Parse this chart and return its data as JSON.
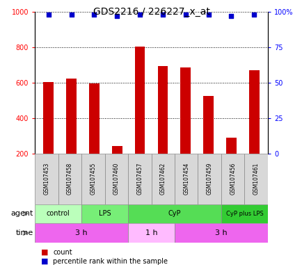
{
  "title": "GDS2216 / 226227_x_at",
  "samples": [
    "GSM107453",
    "GSM107458",
    "GSM107455",
    "GSM107460",
    "GSM107457",
    "GSM107462",
    "GSM107454",
    "GSM107459",
    "GSM107456",
    "GSM107461"
  ],
  "counts": [
    605,
    625,
    597,
    242,
    805,
    693,
    688,
    527,
    289,
    672
  ],
  "percentile_ranks": [
    98,
    98,
    98,
    97,
    98,
    98,
    98,
    98,
    97,
    98
  ],
  "bar_color": "#cc0000",
  "dot_color": "#0000cc",
  "ylim_left": [
    200,
    1000
  ],
  "ylim_right": [
    0,
    100
  ],
  "yticks_left": [
    200,
    400,
    600,
    800,
    1000
  ],
  "ytick_labels_left": [
    "200",
    "400",
    "600",
    "800",
    "1000"
  ],
  "yticks_right": [
    0,
    25,
    50,
    75,
    100
  ],
  "ytick_labels_right": [
    "0",
    "25",
    "50",
    "75",
    "100%"
  ],
  "agent_groups": [
    {
      "label": "control",
      "start": 0,
      "end": 2
    },
    {
      "label": "LPS",
      "start": 2,
      "end": 4
    },
    {
      "label": "CyP",
      "start": 4,
      "end": 8
    },
    {
      "label": "CyP plus LPS",
      "start": 8,
      "end": 10
    }
  ],
  "agent_colors": [
    "#bbffbb",
    "#77ee77",
    "#55dd55",
    "#33cc33"
  ],
  "time_groups": [
    {
      "label": "3 h",
      "start": 0,
      "end": 4
    },
    {
      "label": "1 h",
      "start": 4,
      "end": 6
    },
    {
      "label": "3 h",
      "start": 6,
      "end": 10
    }
  ],
  "time_colors": [
    "#ee66ee",
    "#ffbbff",
    "#ee66ee"
  ],
  "sample_bg_color": "#d8d8d8",
  "legend_count_color": "#cc0000",
  "legend_dot_color": "#0000cc"
}
